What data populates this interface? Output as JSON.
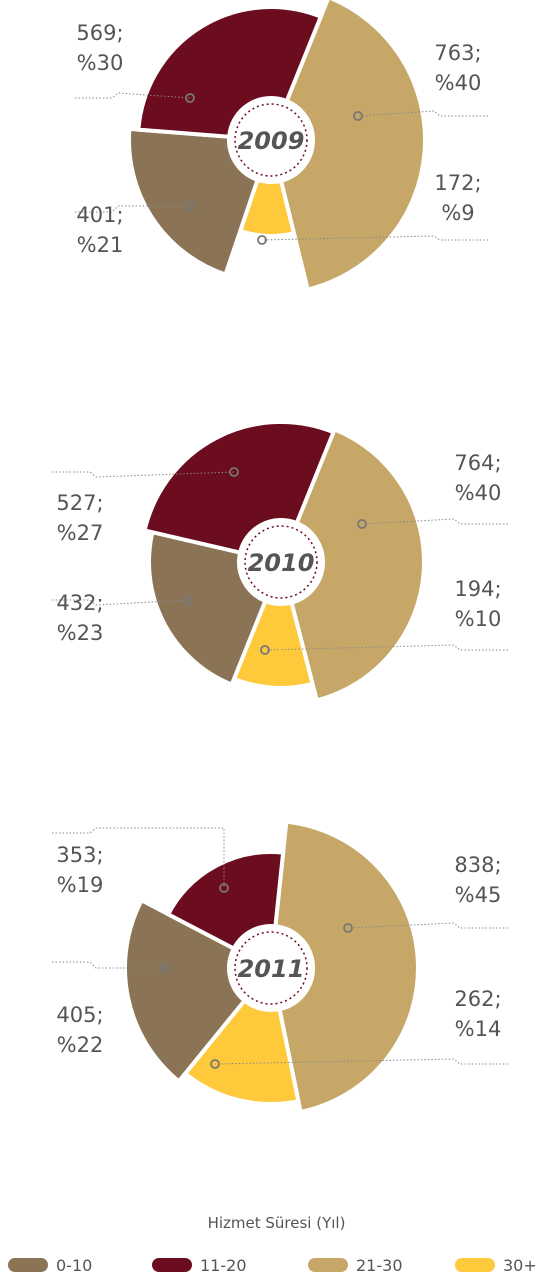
{
  "chart_data": [
    {
      "type": "pie",
      "center_label": "2009",
      "categories": [
        "0-10",
        "11-20",
        "21-30",
        "30+"
      ],
      "values": [
        401,
        569,
        763,
        172
      ],
      "percents": [
        "%21",
        "%30",
        "%40",
        "%9"
      ],
      "labels": [
        {
          "value": "401;",
          "pct": "%21"
        },
        {
          "value": "569;",
          "pct": "%30"
        },
        {
          "value": "763;",
          "pct": "%40"
        },
        {
          "value": "172;",
          "pct": "%9"
        }
      ]
    },
    {
      "type": "pie",
      "center_label": "2010",
      "categories": [
        "0-10",
        "11-20",
        "21-30",
        "30+"
      ],
      "values": [
        432,
        527,
        764,
        194
      ],
      "percents": [
        "%23",
        "%27",
        "%40",
        "%10"
      ],
      "labels": [
        {
          "value": "432;",
          "pct": "%23"
        },
        {
          "value": "527;",
          "pct": "%27"
        },
        {
          "value": "764;",
          "pct": "%40"
        },
        {
          "value": "194;",
          "pct": "%10"
        }
      ]
    },
    {
      "type": "pie",
      "center_label": "2011",
      "categories": [
        "0-10",
        "11-20",
        "21-30",
        "30+"
      ],
      "values": [
        405,
        353,
        838,
        262
      ],
      "percents": [
        "%22",
        "%19",
        "%45",
        "%14"
      ],
      "labels": [
        {
          "value": "405;",
          "pct": "%22"
        },
        {
          "value": "353;",
          "pct": "%19"
        },
        {
          "value": "838;",
          "pct": "%45"
        },
        {
          "value": "262;",
          "pct": "%14"
        }
      ]
    }
  ],
  "legend": {
    "title": "Hizmet Süresi (Yıl)",
    "items": [
      {
        "label": "0-10",
        "color": "#8B7355"
      },
      {
        "label": "11-20",
        "color": "#6B0C1F"
      },
      {
        "label": "21-30",
        "color": "#C6A768"
      },
      {
        "label": "30+",
        "color": "#FFC93C"
      }
    ]
  },
  "colors": {
    "label_text": "#555555",
    "leader_line": "#888888",
    "center_text": "#555555",
    "center_ring": "#6B0C1F"
  }
}
